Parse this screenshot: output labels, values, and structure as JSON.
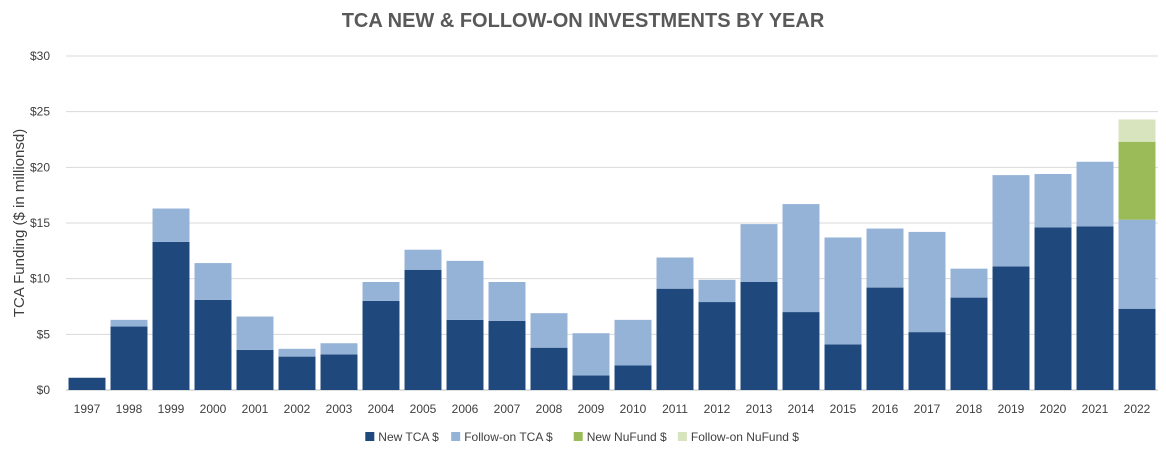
{
  "chart_data": {
    "type": "bar",
    "stacked": true,
    "title": "TCA NEW & FOLLOW-ON INVESTMENTS BY YEAR",
    "xlabel": "",
    "ylabel": "TCA Funding ($ in millionsd)",
    "ylim": [
      0,
      30
    ],
    "yticks": [
      0,
      5,
      10,
      15,
      20,
      25,
      30
    ],
    "ytick_labels": [
      "$0",
      "$5",
      "$10",
      "$15",
      "$20",
      "$25",
      "$30"
    ],
    "grid": true,
    "legend_position": "bottom",
    "categories": [
      "1997",
      "1998",
      "1999",
      "2000",
      "2001",
      "2002",
      "2003",
      "2004",
      "2005",
      "2006",
      "2007",
      "2008",
      "2009",
      "2010",
      "2011",
      "2012",
      "2013",
      "2014",
      "2015",
      "2016",
      "2017",
      "2018",
      "2019",
      "2020",
      "2021",
      "2022"
    ],
    "series": [
      {
        "name": "New TCA $",
        "color": "#1f497d",
        "values": [
          1.1,
          5.7,
          13.3,
          8.1,
          3.6,
          3.0,
          3.2,
          8.0,
          10.8,
          6.3,
          6.2,
          3.8,
          1.3,
          2.2,
          9.1,
          7.9,
          9.7,
          7.0,
          4.1,
          9.2,
          5.2,
          8.3,
          11.1,
          14.6,
          14.7,
          7.3
        ]
      },
      {
        "name": "Follow-on TCA $",
        "color": "#95b3d7",
        "values": [
          0,
          0.6,
          3.0,
          3.3,
          3.0,
          0.7,
          1.0,
          1.7,
          1.8,
          5.3,
          3.5,
          3.1,
          3.8,
          4.1,
          2.8,
          2.0,
          5.2,
          9.7,
          9.6,
          5.3,
          9.0,
          2.6,
          8.2,
          4.8,
          5.8,
          8.0
        ]
      },
      {
        "name": "New NuFund $",
        "color": "#9bbb59",
        "values": [
          0,
          0,
          0,
          0,
          0,
          0,
          0,
          0,
          0,
          0,
          0,
          0,
          0,
          0,
          0,
          0,
          0,
          0,
          0,
          0,
          0,
          0,
          0,
          0,
          0,
          7.0
        ]
      },
      {
        "name": "Follow-on NuFund $",
        "color": "#d7e4bd",
        "values": [
          0,
          0,
          0,
          0,
          0,
          0,
          0,
          0,
          0,
          0,
          0,
          0,
          0,
          0,
          0,
          0,
          0,
          0,
          0,
          0,
          0,
          0,
          0,
          0,
          0,
          2.0
        ]
      }
    ]
  }
}
